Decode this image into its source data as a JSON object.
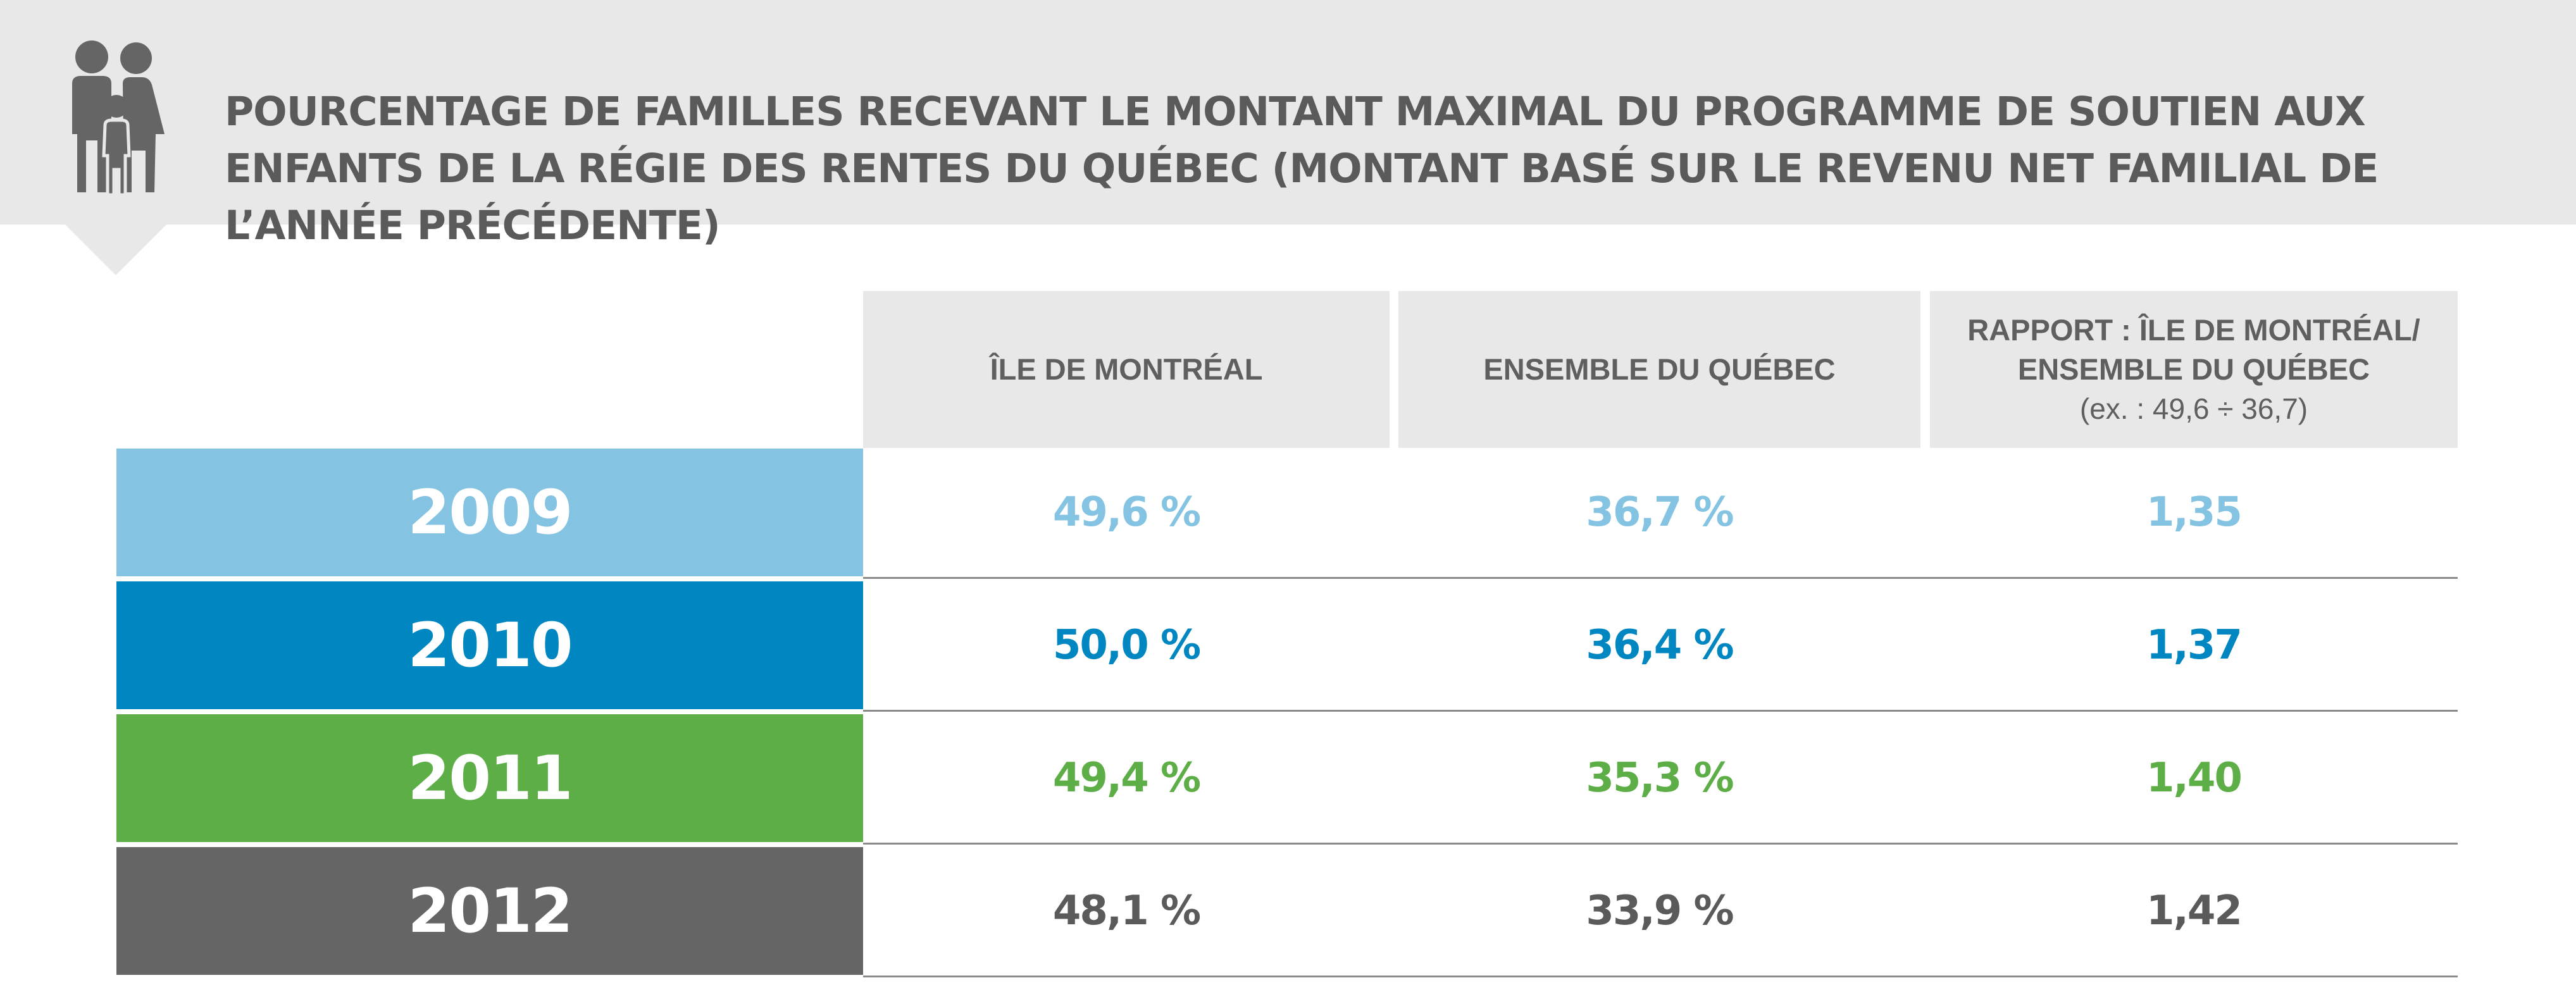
{
  "title": "POURCENTAGE DE FAMILLES RECEVANT LE MONTANT MAXIMAL DU PROGRAMME DE SOUTIEN AUX ENFANTS DE LA RÉGIE DES RENTES DU QUÉBEC (MONTANT BASÉ SUR LE REVENU NET FAMILIAL DE L’ANNÉE PRÉCÉDENTE)",
  "icon": "family-icon",
  "columns": {
    "montreal": "ÎLE DE MONTRÉAL",
    "quebec": "ENSEMBLE DU QUÉBEC",
    "ratio_line1": "RAPPORT : ÎLE DE MONTRÉAL/",
    "ratio_line2": "ENSEMBLE DU QUÉBEC",
    "ratio_example": "(ex. : 49,6 ÷ 36,7)"
  },
  "rows": [
    {
      "year": "2009",
      "montreal": "49,6 %",
      "quebec": "36,7 %",
      "ratio": "1,35",
      "color": "#84c3e2",
      "text_color": "#84c3e2"
    },
    {
      "year": "2010",
      "montreal": "50,0 %",
      "quebec": "36,4 %",
      "ratio": "1,37",
      "color": "#0087c1",
      "text_color": "#0087c1"
    },
    {
      "year": "2011",
      "montreal": "49,4 %",
      "quebec": "35,3 %",
      "ratio": "1,40",
      "color": "#5dae47",
      "text_color": "#5dae47"
    },
    {
      "year": "2012",
      "montreal": "48,1 %",
      "quebec": "33,9 %",
      "ratio": "1,42",
      "color": "#656565",
      "text_color": "#5a5a5a"
    }
  ],
  "chart_data": {
    "type": "table",
    "title": "POURCENTAGE DE FAMILLES RECEVANT LE MONTANT MAXIMAL DU PROGRAMME DE SOUTIEN AUX ENFANTS DE LA RÉGIE DES RENTES DU QUÉBEC (MONTANT BASÉ SUR LE REVENU NET FAMILIAL DE L’ANNÉE PRÉCÉDENTE)",
    "columns": [
      "ÎLE DE MONTRÉAL",
      "ENSEMBLE DU QUÉBEC",
      "RAPPORT : ÎLE DE MONTRÉAL/ ENSEMBLE DU QUÉBEC (ex. : 49,6 ÷ 36,7)"
    ],
    "categories": [
      "2009",
      "2010",
      "2011",
      "2012"
    ],
    "series": [
      {
        "name": "ÎLE DE MONTRÉAL",
        "values": [
          49.6,
          50.0,
          49.4,
          48.1
        ]
      },
      {
        "name": "ENSEMBLE DU QUÉBEC",
        "values": [
          36.7,
          36.4,
          35.3,
          33.9
        ]
      },
      {
        "name": "RAPPORT : ÎLE DE MONTRÉAL/ ENSEMBLE DU QUÉBEC",
        "values": [
          1.35,
          1.37,
          1.4,
          1.42
        ]
      }
    ]
  }
}
